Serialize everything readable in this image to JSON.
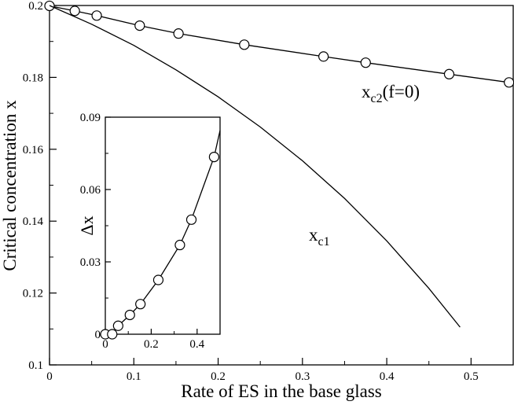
{
  "chart_data": [
    {
      "type": "line",
      "title": "",
      "xlabel": "Rate of ES in the base glass",
      "ylabel": "Critical concentration x",
      "xlim": [
        0,
        0.55
      ],
      "ylim": [
        0.1,
        0.2
      ],
      "xticks": [
        0,
        0.1,
        0.2,
        0.3,
        0.4,
        0.5
      ],
      "xtick_labels": [
        "0",
        "0.1",
        "0.2",
        "0.3",
        "0.4",
        "0.5"
      ],
      "yticks": [
        0.1,
        0.12,
        0.14,
        0.16,
        0.18,
        0.2
      ],
      "ytick_labels": [
        "0.1",
        "0.12",
        "0.14",
        "0.16",
        "0.18",
        "0.2"
      ],
      "grid": false,
      "series": [
        {
          "name": "x_c2(f=0)",
          "label_main": "x",
          "label_sub": "c2",
          "label_suffix": "(f=0)",
          "marker": "circle",
          "x": [
            0,
            0.03,
            0.056,
            0.107,
            0.153,
            0.231,
            0.325,
            0.375,
            0.474,
            0.545
          ],
          "y": [
            0.1999,
            0.1985,
            0.1972,
            0.1944,
            0.1922,
            0.1891,
            0.1858,
            0.1841,
            0.1809,
            0.1786
          ]
        },
        {
          "name": "x_c1",
          "label_main": "x",
          "label_sub": "c1",
          "marker": "none",
          "x": [
            0,
            0.05,
            0.1,
            0.15,
            0.2,
            0.25,
            0.3,
            0.35,
            0.4,
            0.45,
            0.487
          ],
          "y": [
            0.2,
            0.1948,
            0.1889,
            0.1821,
            0.1746,
            0.1662,
            0.1568,
            0.1463,
            0.1345,
            0.1213,
            0.1105
          ]
        }
      ]
    },
    {
      "type": "line",
      "title": "",
      "inset": true,
      "xlabel": "",
      "ylabel": "Δx",
      "xlim": [
        0,
        0.5
      ],
      "ylim": [
        0,
        0.09
      ],
      "xticks": [
        0,
        0.2,
        0.4
      ],
      "xtick_labels": [
        "0",
        "0.2",
        "0.4"
      ],
      "yticks": [
        0,
        0.03,
        0.06,
        0.09
      ],
      "ytick_labels": [
        "0",
        "0.03",
        "0.06",
        "0.09"
      ],
      "grid": false,
      "series": [
        {
          "marker": "circle",
          "x": [
            0,
            0.03,
            0.056,
            0.107,
            0.153,
            0.231,
            0.325,
            0.375,
            0.474,
            0.5
          ],
          "y": [
            0.0,
            0.0,
            0.0035,
            0.008,
            0.0125,
            0.0225,
            0.037,
            0.0475,
            0.0735,
            0.0845
          ],
          "marker_count": 9
        }
      ]
    }
  ]
}
